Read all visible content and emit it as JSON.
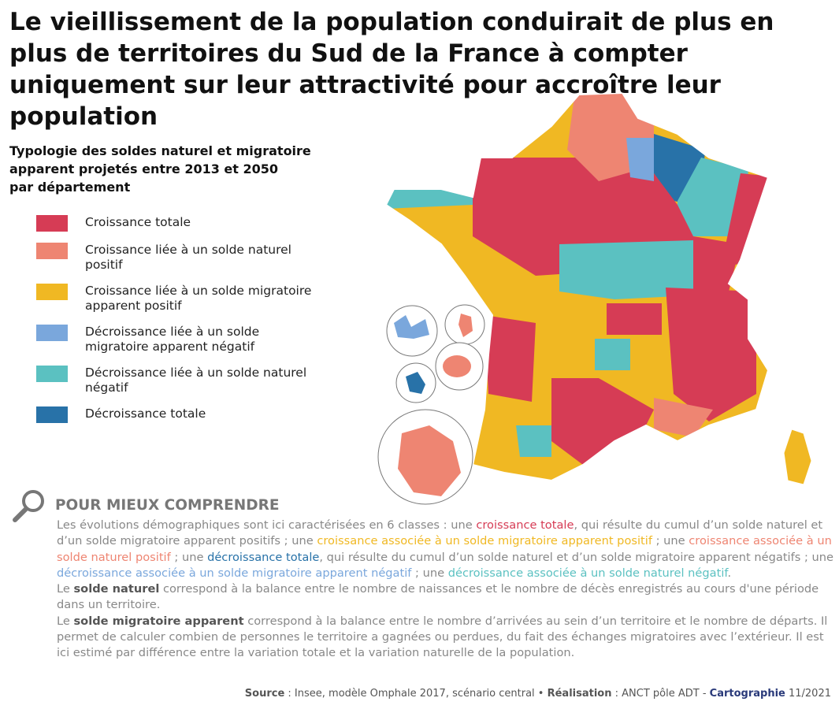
{
  "title": "Le vieillissement de la population conduirait de plus en plus de territoires du Sud de la France à compter uniquement sur leur attractivité pour accroître leur population",
  "legend": {
    "title": [
      "Typologie des soldes naturel et migratoire",
      "apparent projetés entre 2013 et 2050",
      "par département"
    ],
    "items": [
      {
        "label": "Croissance totale",
        "color": "#d63c55"
      },
      {
        "label": "Croissance liée à un solde naturel positif",
        "color": "#ee8572"
      },
      {
        "label": "Croissance liée à un solde migratoire apparent positif",
        "color": "#f0b823"
      },
      {
        "label": "Décroissance liée à un solde migratoire apparent négatif",
        "color": "#7aa7dc"
      },
      {
        "label": "Décroissance liée à un solde naturel négatif",
        "color": "#5bc1c1"
      },
      {
        "label": "Décroissance totale",
        "color": "#2872a8"
      }
    ]
  },
  "explainer": {
    "heading": "POUR MIEUX COMPRENDRE",
    "paragraphs": [
      [
        {
          "text": "Les évolutions démographiques sont ici caractérisées en 6 classes : une "
        },
        {
          "text": "croissance totale",
          "color": "#d63c55"
        },
        {
          "text": ", qui résulte du cumul d’un solde naturel et d’un solde migratoire apparent positifs ; une "
        },
        {
          "text": "croissance associée à un solde migratoire apparent positif",
          "color": "#f0b823"
        },
        {
          "text": " ; une "
        },
        {
          "text": "croissance associée à un solde naturel positif",
          "color": "#ee8572"
        },
        {
          "text": " ; une "
        },
        {
          "text": "décroissance totale",
          "color": "#2872a8"
        },
        {
          "text": ", qui résulte du cumul d’un solde naturel et d’un solde migratoire apparent négatifs ; une "
        },
        {
          "text": "décroissance associée à un solde migratoire apparent négatif",
          "color": "#7aa7dc"
        },
        {
          "text": " ; une "
        },
        {
          "text": "décroissance associée à un solde naturel négatif",
          "color": "#5bc1c1"
        },
        {
          "text": "."
        }
      ],
      [
        {
          "text": "Le "
        },
        {
          "text": "solde naturel",
          "bold": true
        },
        {
          "text": " correspond à la balance entre le nombre de naissances et le nombre de décès enregistrés au cours d'une période dans un territoire."
        }
      ],
      [
        {
          "text": "Le "
        },
        {
          "text": "solde migratoire apparent",
          "bold": true
        },
        {
          "text": " correspond à la balance entre le nombre d’arrivées au sein d’un territoire et le nombre de départs. Il permet de calculer combien de personnes le territoire a gagnées ou perdues, du fait des échanges migratoires avec l’extérieur. Il est ici estimé par différence entre la variation totale et la variation naturelle de la population."
        }
      ]
    ]
  },
  "source": [
    {
      "text": "Source",
      "bold": true
    },
    {
      "text": " : Insee, modèle Omphale 2017, scénario central • "
    },
    {
      "text": "Réalisation",
      "bold": true
    },
    {
      "text": " : ANCT pôle ADT - "
    },
    {
      "text": "Cartographie",
      "bold": true,
      "color": "#2a3a7a"
    },
    {
      "text": " 11/2021"
    }
  ]
}
